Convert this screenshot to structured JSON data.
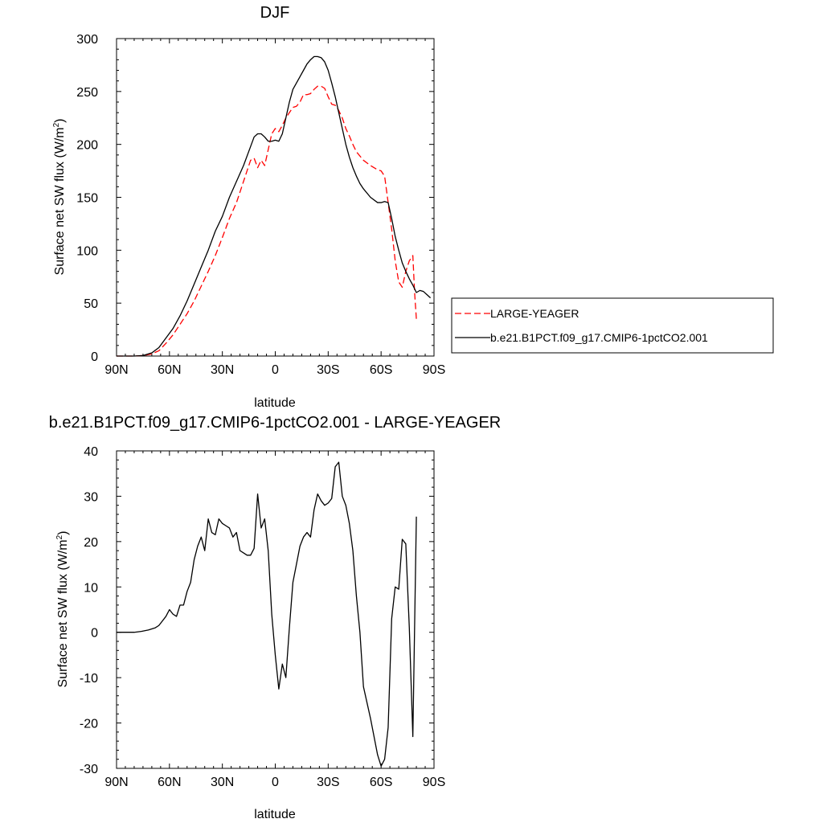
{
  "chart_data": [
    {
      "type": "line",
      "title": "DJF",
      "xlabel": "latitude",
      "ylabel": "Surface net SW flux (W/m",
      "ylabel_sup": "2",
      "ylabel_close": ")",
      "xlim": [
        90,
        -90
      ],
      "ylim": [
        0,
        300
      ],
      "xticks": [
        90,
        60,
        30,
        0,
        -30,
        -60,
        -90
      ],
      "xtick_labels": [
        "90N",
        "60N",
        "30N",
        "0",
        "30S",
        "60S",
        "90S"
      ],
      "yticks": [
        0,
        50,
        100,
        150,
        200,
        250,
        300
      ],
      "ytick_labels": [
        "0",
        "50",
        "100",
        "150",
        "200",
        "250",
        "300"
      ],
      "grid": false,
      "legend_position": "right",
      "series": [
        {
          "name": "LARGE-YEAGER",
          "color": "#ff0000",
          "dash": true,
          "x": [
            90,
            80,
            75,
            70,
            66,
            62,
            58,
            54,
            50,
            46,
            42,
            38,
            34,
            30,
            26,
            22,
            20,
            18,
            16,
            14,
            12,
            10,
            8,
            6,
            4,
            2,
            0,
            -2,
            -4,
            -6,
            -8,
            -10,
            -12,
            -14,
            -16,
            -18,
            -20,
            -22,
            -24,
            -26,
            -28,
            -30,
            -32,
            -34,
            -36,
            -38,
            -40,
            -42,
            -44,
            -46,
            -50,
            -54,
            -58,
            -60,
            -62,
            -64,
            -66,
            -68,
            -70,
            -72,
            -74,
            -76,
            -78,
            -79,
            -80
          ],
          "y": [
            0,
            0,
            0.5,
            2,
            5,
            12,
            20,
            30,
            40,
            52,
            66,
            80,
            95,
            112,
            130,
            145,
            155,
            165,
            175,
            185,
            187,
            178,
            185,
            180,
            195,
            210,
            215,
            212,
            218,
            225,
            230,
            235,
            236,
            240,
            247,
            247,
            248,
            252,
            255,
            255,
            253,
            245,
            238,
            237,
            232,
            225,
            215,
            208,
            200,
            193,
            185,
            180,
            176,
            175,
            170,
            145,
            120,
            90,
            70,
            65,
            80,
            90,
            95,
            60,
            35
          ]
        },
        {
          "name": "b.e21.B1PCT.f09_g17.CMIP6-1pctCO2.001",
          "color": "#000000",
          "dash": false,
          "x": [
            90,
            80,
            75,
            70,
            66,
            62,
            58,
            54,
            50,
            46,
            42,
            38,
            34,
            30,
            26,
            22,
            18,
            14,
            12,
            10,
            8,
            6,
            4,
            2,
            0,
            -2,
            -4,
            -6,
            -8,
            -10,
            -12,
            -14,
            -16,
            -18,
            -20,
            -22,
            -24,
            -26,
            -28,
            -30,
            -32,
            -34,
            -36,
            -38,
            -40,
            -42,
            -44,
            -46,
            -48,
            -50,
            -54,
            -58,
            -60,
            -62,
            -64,
            -66,
            -68,
            -70,
            -72,
            -74,
            -76,
            -78,
            -80,
            -82,
            -84,
            -86,
            -88
          ],
          "y": [
            0,
            0,
            0.5,
            3,
            8,
            17,
            26,
            38,
            52,
            68,
            84,
            100,
            118,
            132,
            150,
            165,
            180,
            198,
            207,
            210,
            210,
            207,
            203,
            203,
            204,
            203,
            210,
            225,
            240,
            252,
            258,
            264,
            270,
            276,
            280,
            283,
            283,
            282,
            278,
            270,
            258,
            245,
            230,
            215,
            200,
            188,
            178,
            170,
            163,
            158,
            150,
            145,
            145,
            146,
            145,
            130,
            113,
            100,
            88,
            80,
            73,
            67,
            60,
            62,
            61,
            58,
            55
          ]
        }
      ]
    },
    {
      "type": "line",
      "title": "b.e21.B1PCT.f09_g17.CMIP6-1pctCO2.001 - LARGE-YEAGER",
      "xlabel": "latitude",
      "ylabel": "Surface net SW flux (W/m",
      "ylabel_sup": "2",
      "ylabel_close": ")",
      "xlim": [
        90,
        -90
      ],
      "ylim": [
        -30,
        40
      ],
      "xticks": [
        90,
        60,
        30,
        0,
        -30,
        -60,
        -90
      ],
      "xtick_labels": [
        "90N",
        "60N",
        "30N",
        "0",
        "30S",
        "60S",
        "90S"
      ],
      "yticks": [
        -30,
        -20,
        -10,
        0,
        10,
        20,
        30,
        40
      ],
      "ytick_labels": [
        "-30",
        "-20",
        "-10",
        "0",
        "10",
        "20",
        "30",
        "40"
      ],
      "grid": false,
      "series": [
        {
          "color": "#000000",
          "dash": false,
          "x": [
            90,
            80,
            76,
            72,
            68,
            66,
            64,
            62,
            60,
            58,
            56,
            54,
            52,
            50,
            48,
            46,
            44,
            42,
            40,
            38,
            36,
            34,
            32,
            30,
            28,
            26,
            24,
            22,
            20,
            18,
            16,
            14,
            12,
            10,
            8,
            6,
            4,
            2,
            0,
            -2,
            -4,
            -6,
            -8,
            -10,
            -12,
            -14,
            -16,
            -18,
            -20,
            -22,
            -24,
            -26,
            -28,
            -30,
            -32,
            -34,
            -36,
            -38,
            -40,
            -42,
            -44,
            -46,
            -48,
            -50,
            -54,
            -58,
            -60,
            -62,
            -64,
            -66,
            -68,
            -70,
            -72,
            -74,
            -76,
            -78,
            -80
          ],
          "y": [
            0,
            0,
            0.2,
            0.5,
            1,
            1.5,
            2.5,
            3.5,
            5,
            4,
            3.5,
            6,
            6,
            9,
            11,
            16,
            19,
            21,
            18,
            25,
            22,
            21.5,
            25,
            24,
            23.5,
            23,
            21,
            22,
            18,
            17.5,
            17,
            17,
            18.5,
            30.5,
            23,
            25,
            18,
            4,
            -5,
            -12.5,
            -7,
            -10,
            1,
            11,
            15,
            19,
            21,
            22,
            21,
            27,
            30.5,
            29,
            28,
            28.5,
            29.5,
            36.5,
            37.5,
            30,
            28,
            24,
            18,
            8,
            0,
            -12,
            -19,
            -27,
            -29.5,
            -28,
            -21,
            3,
            10,
            9.5,
            20.5,
            19.5,
            1,
            -23,
            25.5
          ]
        }
      ]
    }
  ]
}
